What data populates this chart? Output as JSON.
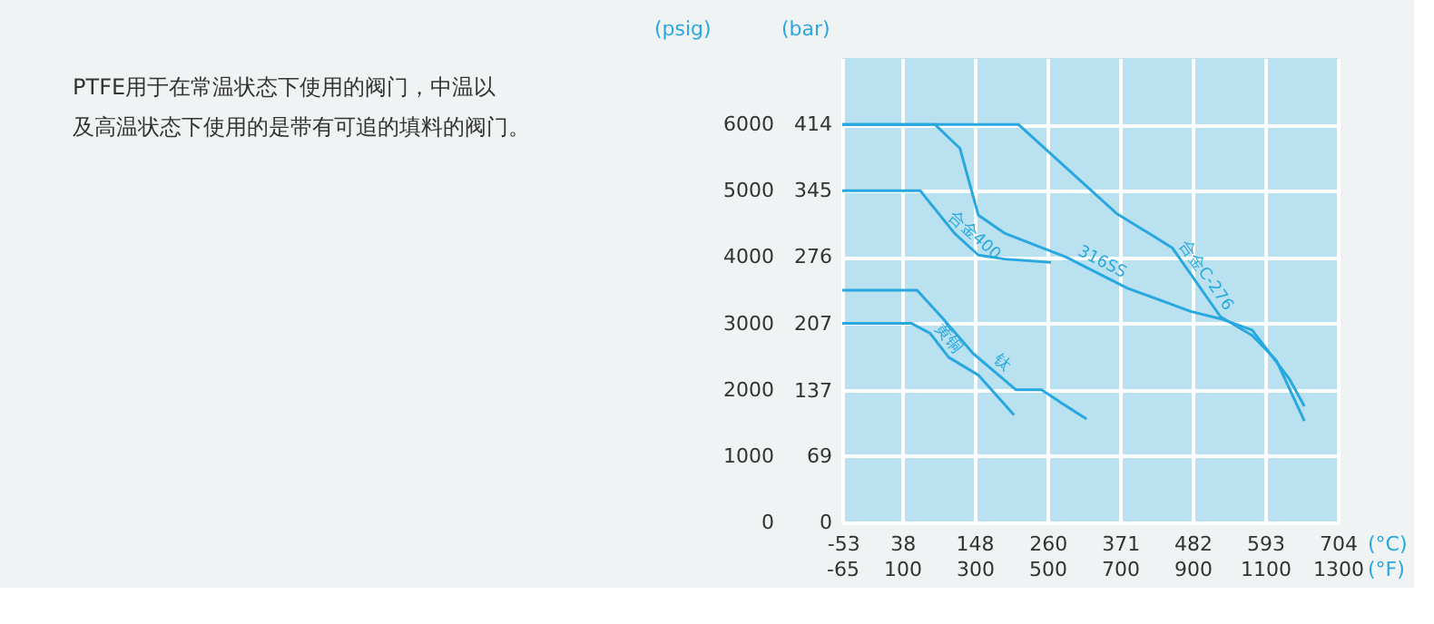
{
  "chart_data": {
    "type": "line",
    "title": "PTFE用于在常温状态下使用的阀门，中温以及高温状态下使用的是带有可追的填料的阀门。",
    "xlabel": "(°F)",
    "x2label": "(°C)",
    "ylabel": "(psig)",
    "y2label": "(bar)",
    "xlim": [
      -65,
      1300
    ],
    "xticks": [
      -65,
      100,
      300,
      500,
      700,
      900,
      1100,
      1300
    ],
    "x2lim": [
      -54,
      704
    ],
    "x2ticks": [
      -53,
      38,
      148,
      260,
      371,
      482,
      593,
      704
    ],
    "ylim": [
      0,
      7000
    ],
    "yticks": [
      0,
      1000,
      2000,
      3000,
      4000,
      5000,
      6000
    ],
    "y2lim": [
      0,
      483
    ],
    "y2ticks": [
      0,
      69,
      137,
      207,
      276,
      345,
      414
    ],
    "grid": true,
    "legend": false,
    "marker": "none",
    "line_style": "solid",
    "series": [
      {
        "name": "合金C-276",
        "color": "#29a8e0",
        "x": [
          -65,
          420,
          690,
          844,
          977,
          1064,
          1131,
          1208
        ],
        "values": [
          6000,
          6000,
          4660,
          4140,
          3100,
          2820,
          2440,
          1530
        ]
      },
      {
        "name": "316SS",
        "color": "#29a8e0",
        "x": [
          -65,
          190,
          259,
          310,
          382,
          551,
          721,
          895,
          977,
          1064,
          1167,
          1208
        ],
        "values": [
          6000,
          6000,
          5640,
          4630,
          4360,
          4000,
          3530,
          3180,
          3070,
          2900,
          2160,
          1750
        ]
      },
      {
        "name": "合金400",
        "color": "#29a8e0",
        "x": [
          -65,
          150,
          244,
          310,
          382,
          510
        ],
        "values": [
          5000,
          5000,
          4360,
          4030,
          3970,
          3920
        ]
      },
      {
        "name": "钛",
        "color": "#29a8e0",
        "x": [
          -65,
          141,
          208,
          295,
          413,
          484,
          536,
          608
        ],
        "values": [
          3500,
          3500,
          3100,
          2550,
          2000,
          2000,
          1810,
          1560
        ]
      },
      {
        "name": "黄铜",
        "color": "#29a8e0",
        "x": [
          -65,
          126,
          177,
          228,
          310,
          408
        ],
        "values": [
          3000,
          3000,
          2850,
          2490,
          2220,
          1620
        ]
      }
    ]
  }
}
